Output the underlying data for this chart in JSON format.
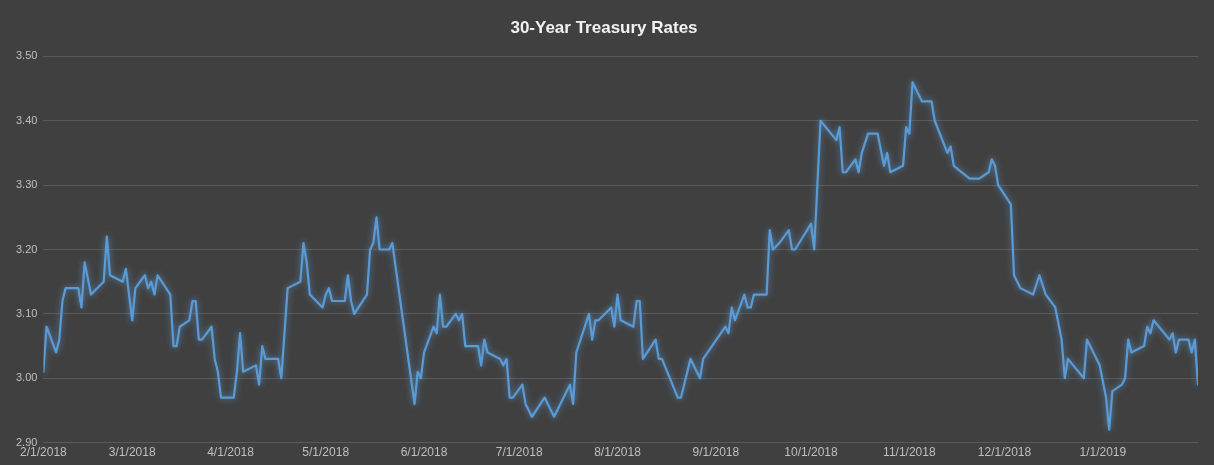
{
  "chart_data": {
    "type": "line",
    "title": "30-Year Treasury Rates",
    "x": [
      "2018-02-01",
      "2018-02-02",
      "2018-02-05",
      "2018-02-06",
      "2018-02-07",
      "2018-02-08",
      "2018-02-12",
      "2018-02-13",
      "2018-02-14",
      "2018-02-16",
      "2018-02-20",
      "2018-02-21",
      "2018-02-22",
      "2018-02-26",
      "2018-02-27",
      "2018-03-01",
      "2018-03-02",
      "2018-03-05",
      "2018-03-06",
      "2018-03-07",
      "2018-03-08",
      "2018-03-09",
      "2018-03-13",
      "2018-03-14",
      "2018-03-15",
      "2018-03-16",
      "2018-03-19",
      "2018-03-20",
      "2018-03-21",
      "2018-03-22",
      "2018-03-23",
      "2018-03-26",
      "2018-03-27",
      "2018-03-28",
      "2018-03-29",
      "2018-04-02",
      "2018-04-03",
      "2018-04-04",
      "2018-04-05",
      "2018-04-09",
      "2018-04-10",
      "2018-04-11",
      "2018-04-12",
      "2018-04-16",
      "2018-04-17",
      "2018-04-18",
      "2018-04-19",
      "2018-04-23",
      "2018-04-24",
      "2018-04-25",
      "2018-04-26",
      "2018-04-30",
      "2018-05-01",
      "2018-05-02",
      "2018-05-03",
      "2018-05-07",
      "2018-05-08",
      "2018-05-09",
      "2018-05-10",
      "2018-05-14",
      "2018-05-15",
      "2018-05-16",
      "2018-05-17",
      "2018-05-18",
      "2018-05-21",
      "2018-05-22",
      "2018-05-29",
      "2018-05-30",
      "2018-05-31",
      "2018-06-01",
      "2018-06-04",
      "2018-06-05",
      "2018-06-06",
      "2018-06-07",
      "2018-06-08",
      "2018-06-11",
      "2018-06-12",
      "2018-06-13",
      "2018-06-14",
      "2018-06-18",
      "2018-06-19",
      "2018-06-20",
      "2018-06-21",
      "2018-06-25",
      "2018-06-26",
      "2018-06-27",
      "2018-06-28",
      "2018-06-29",
      "2018-07-02",
      "2018-07-03",
      "2018-07-05",
      "2018-07-09",
      "2018-07-12",
      "2018-07-16",
      "2018-07-17",
      "2018-07-18",
      "2018-07-19",
      "2018-07-23",
      "2018-07-24",
      "2018-07-25",
      "2018-07-26",
      "2018-07-30",
      "2018-07-31",
      "2018-08-01",
      "2018-08-02",
      "2018-08-06",
      "2018-08-07",
      "2018-08-08",
      "2018-08-09",
      "2018-08-13",
      "2018-08-14",
      "2018-08-15",
      "2018-08-20",
      "2018-08-21",
      "2018-08-24",
      "2018-08-27",
      "2018-08-28",
      "2018-09-04",
      "2018-09-05",
      "2018-09-06",
      "2018-09-07",
      "2018-09-10",
      "2018-09-11",
      "2018-09-12",
      "2018-09-13",
      "2018-09-17",
      "2018-09-18",
      "2018-09-19",
      "2018-09-21",
      "2018-09-24",
      "2018-09-25",
      "2018-09-26",
      "2018-10-01",
      "2018-10-02",
      "2018-10-03",
      "2018-10-04",
      "2018-10-09",
      "2018-10-10",
      "2018-10-11",
      "2018-10-12",
      "2018-10-15",
      "2018-10-16",
      "2018-10-17",
      "2018-10-19",
      "2018-10-22",
      "2018-10-24",
      "2018-10-25",
      "2018-10-26",
      "2018-10-30",
      "2018-10-31",
      "2018-11-01",
      "2018-11-02",
      "2018-11-05",
      "2018-11-08",
      "2018-11-09",
      "2018-11-13",
      "2018-11-14",
      "2018-11-15",
      "2018-11-20",
      "2018-11-23",
      "2018-11-26",
      "2018-11-27",
      "2018-11-28",
      "2018-11-29",
      "2018-12-03",
      "2018-12-04",
      "2018-12-06",
      "2018-12-10",
      "2018-12-12",
      "2018-12-14",
      "2018-12-17",
      "2018-12-19",
      "2018-12-20",
      "2018-12-21",
      "2018-12-26",
      "2018-12-27",
      "2018-12-31",
      "2019-01-02",
      "2019-01-03",
      "2019-01-04",
      "2019-01-07",
      "2019-01-08",
      "2019-01-09",
      "2019-01-10",
      "2019-01-14",
      "2019-01-15",
      "2019-01-16",
      "2019-01-17",
      "2019-01-22",
      "2019-01-23",
      "2019-01-24",
      "2019-01-25",
      "2019-01-28",
      "2019-01-29",
      "2019-01-30",
      "2019-01-31"
    ],
    "series": [
      {
        "color": "#5b9bd5",
        "values": [
          3.01,
          3.08,
          3.04,
          3.06,
          3.12,
          3.14,
          3.14,
          3.11,
          3.18,
          3.13,
          3.15,
          3.22,
          3.16,
          3.15,
          3.17,
          3.09,
          3.14,
          3.16,
          3.14,
          3.15,
          3.13,
          3.16,
          3.13,
          3.05,
          3.05,
          3.08,
          3.09,
          3.12,
          3.12,
          3.06,
          3.06,
          3.08,
          3.03,
          3.01,
          2.97,
          2.97,
          3.01,
          3.07,
          3.01,
          3.02,
          2.99,
          3.05,
          3.03,
          3.03,
          3.0,
          3.07,
          3.14,
          3.15,
          3.21,
          3.18,
          3.13,
          3.11,
          3.13,
          3.14,
          3.12,
          3.12,
          3.16,
          3.12,
          3.1,
          3.13,
          3.2,
          3.21,
          3.25,
          3.2,
          3.2,
          3.21,
          2.96,
          3.01,
          3.0,
          3.04,
          3.08,
          3.07,
          3.13,
          3.08,
          3.08,
          3.1,
          3.09,
          3.1,
          3.05,
          3.05,
          3.02,
          3.06,
          3.04,
          3.03,
          3.02,
          3.03,
          2.97,
          2.97,
          2.99,
          2.96,
          2.94,
          2.97,
          2.94,
          2.98,
          2.99,
          2.96,
          3.04,
          3.1,
          3.06,
          3.09,
          3.09,
          3.11,
          3.08,
          3.13,
          3.09,
          3.08,
          3.12,
          3.12,
          3.03,
          3.06,
          3.03,
          3.03,
          2.97,
          2.97,
          3.03,
          3.0,
          3.03,
          3.08,
          3.07,
          3.11,
          3.09,
          3.13,
          3.11,
          3.11,
          3.13,
          3.13,
          3.23,
          3.2,
          3.21,
          3.23,
          3.2,
          3.2,
          3.24,
          3.2,
          3.3,
          3.4,
          3.37,
          3.39,
          3.32,
          3.32,
          3.34,
          3.32,
          3.35,
          3.38,
          3.38,
          3.33,
          3.35,
          3.32,
          3.33,
          3.39,
          3.38,
          3.46,
          3.43,
          3.43,
          3.4,
          3.35,
          3.36,
          3.33,
          3.31,
          3.31,
          3.32,
          3.34,
          3.33,
          3.3,
          3.27,
          3.16,
          3.14,
          3.13,
          3.16,
          3.13,
          3.11,
          3.06,
          3.0,
          3.03,
          3.0,
          3.06,
          3.02,
          2.97,
          2.92,
          2.98,
          2.99,
          3.0,
          3.06,
          3.04,
          3.05,
          3.08,
          3.07,
          3.09,
          3.06,
          3.07,
          3.04,
          3.06,
          3.06,
          3.04,
          3.06,
          2.99
        ]
      }
    ],
    "xlim": [
      "2018-02-01",
      "2019-01-31"
    ],
    "xticks": [
      {
        "value": "2018-02-01",
        "label": "2/1/2018"
      },
      {
        "value": "2018-03-01",
        "label": "3/1/2018"
      },
      {
        "value": "2018-04-01",
        "label": "4/1/2018"
      },
      {
        "value": "2018-05-01",
        "label": "5/1/2018"
      },
      {
        "value": "2018-06-01",
        "label": "6/1/2018"
      },
      {
        "value": "2018-07-01",
        "label": "7/1/2018"
      },
      {
        "value": "2018-08-01",
        "label": "8/1/2018"
      },
      {
        "value": "2018-09-01",
        "label": "9/1/2018"
      },
      {
        "value": "2018-10-01",
        "label": "10/1/2018"
      },
      {
        "value": "2018-11-01",
        "label": "11/1/2018"
      },
      {
        "value": "2018-12-01",
        "label": "12/1/2018"
      },
      {
        "value": "2019-01-01",
        "label": "1/1/2019"
      }
    ],
    "ylim": [
      2.9,
      3.5
    ],
    "yticks": [
      {
        "value": 2.9,
        "label": "2.90"
      },
      {
        "value": 3.0,
        "label": "3.00"
      },
      {
        "value": 3.1,
        "label": "3.10"
      },
      {
        "value": 3.2,
        "label": "3.20"
      },
      {
        "value": 3.3,
        "label": "3.30"
      },
      {
        "value": 3.4,
        "label": "3.40"
      },
      {
        "value": 3.5,
        "label": "3.50"
      }
    ],
    "grid": "y",
    "legend": false,
    "marker": "none",
    "line_style": "solid"
  }
}
